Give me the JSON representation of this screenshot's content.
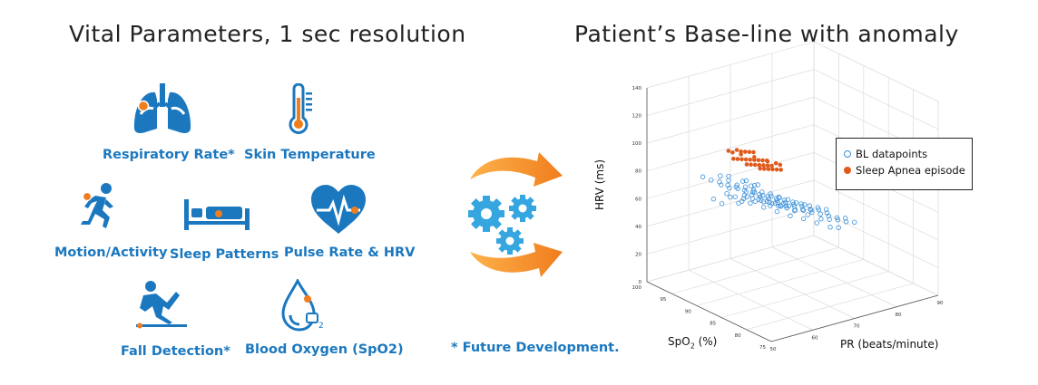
{
  "left_title": "Vital Parameters, 1 sec resolution",
  "right_title": "Patient’s Base-line with anomaly",
  "vitals": [
    {
      "label": "Respiratory Rate*",
      "icon": "lungs-icon"
    },
    {
      "label": "Skin Temperature",
      "icon": "thermometer-icon"
    },
    {
      "label": "Motion/Activity",
      "icon": "running-person-icon"
    },
    {
      "label": "Sleep Patterns",
      "icon": "bed-icon"
    },
    {
      "label": "Pulse Rate & HRV",
      "icon": "heart-pulse-icon"
    },
    {
      "label": "Fall Detection*",
      "icon": "falling-person-icon"
    },
    {
      "label": "Blood Oxygen (SpO2)",
      "icon": "blood-drop-icon"
    }
  ],
  "footnote": "* Future Development.",
  "colors": {
    "accent_blue": "#1b78bf",
    "accent_orange": "#f07d1e",
    "scatter_blue": "#3a8fd8",
    "anomaly_orange": "#e05a1c"
  },
  "chart_data": {
    "type": "scatter",
    "dimensions": 3,
    "axes": {
      "x": {
        "label": "PR (beats/minute)",
        "range": [
          50,
          90
        ],
        "ticks": [
          "50",
          "60",
          "70",
          "80",
          "90"
        ]
      },
      "y": {
        "label_prefix": "SpO",
        "label_sub": "2",
        "label_suffix": " (%)",
        "range": [
          75,
          100
        ],
        "ticks": [
          "75",
          "80",
          "85",
          "90",
          "95",
          "100"
        ]
      },
      "z": {
        "label": "HRV (ms)",
        "range": [
          0,
          140
        ],
        "ticks": [
          "0",
          "20",
          "40",
          "60",
          "80",
          "100",
          "120",
          "140"
        ]
      }
    },
    "grid": true,
    "legend_position": "top-right",
    "series": [
      {
        "name": "BL datapoints",
        "marker": "open-circle",
        "color": "#3a8fd8",
        "points": [
          [
            60,
            95,
            60
          ],
          [
            62,
            95,
            55
          ],
          [
            64,
            95,
            58
          ],
          [
            66,
            95,
            52
          ],
          [
            68,
            95,
            55
          ],
          [
            70,
            95,
            50
          ],
          [
            72,
            95,
            48
          ],
          [
            74,
            95,
            45
          ],
          [
            76,
            95,
            42
          ],
          [
            78,
            95,
            40
          ],
          [
            65,
            93,
            62
          ],
          [
            67,
            93,
            58
          ],
          [
            69,
            93,
            55
          ],
          [
            71,
            93,
            52
          ],
          [
            73,
            93,
            50
          ],
          [
            75,
            93,
            46
          ],
          [
            77,
            93,
            44
          ],
          [
            79,
            93,
            40
          ],
          [
            81,
            93,
            38
          ],
          [
            66,
            97,
            65
          ],
          [
            68,
            97,
            60
          ],
          [
            70,
            97,
            57
          ],
          [
            72,
            97,
            53
          ],
          [
            74,
            97,
            50
          ],
          [
            76,
            97,
            47
          ],
          [
            78,
            97,
            43
          ],
          [
            63,
            96,
            66
          ],
          [
            65,
            96,
            62
          ],
          [
            67,
            96,
            60
          ],
          [
            69,
            96,
            56
          ],
          [
            71,
            96,
            54
          ],
          [
            73,
            96,
            50
          ],
          [
            75,
            96,
            48
          ],
          [
            77,
            96,
            45
          ],
          [
            79,
            96,
            42
          ],
          [
            81,
            96,
            38
          ],
          [
            83,
            96,
            35
          ],
          [
            68,
            94,
            58
          ],
          [
            70,
            94,
            55
          ],
          [
            72,
            94,
            52
          ],
          [
            74,
            94,
            49
          ],
          [
            76,
            94,
            46
          ],
          [
            78,
            94,
            43
          ],
          [
            80,
            94,
            40
          ],
          [
            82,
            94,
            36
          ],
          [
            84,
            94,
            34
          ],
          [
            86,
            94,
            30
          ],
          [
            70,
            92,
            52
          ],
          [
            72,
            92,
            50
          ],
          [
            74,
            92,
            47
          ],
          [
            76,
            92,
            44
          ],
          [
            78,
            92,
            42
          ],
          [
            80,
            92,
            39
          ],
          [
            82,
            92,
            36
          ],
          [
            84,
            92,
            33
          ],
          [
            86,
            92,
            30
          ],
          [
            88,
            92,
            28
          ],
          [
            61,
            98,
            70
          ],
          [
            63,
            98,
            66
          ],
          [
            65,
            98,
            63
          ],
          [
            67,
            98,
            59
          ],
          [
            69,
            98,
            56
          ],
          [
            71,
            98,
            52
          ],
          [
            73,
            98,
            49
          ],
          [
            62,
            94,
            64
          ],
          [
            64,
            94,
            60
          ],
          [
            66,
            94,
            57
          ],
          [
            71,
            95,
            54
          ],
          [
            73,
            95,
            51
          ],
          [
            75,
            95,
            48
          ],
          [
            77,
            95,
            45
          ],
          [
            79,
            95,
            42
          ],
          [
            81,
            95,
            39
          ],
          [
            83,
            95,
            36
          ],
          [
            85,
            95,
            33
          ],
          [
            87,
            95,
            30
          ],
          [
            69,
            95,
            62
          ],
          [
            71,
            96,
            59
          ],
          [
            73,
            97,
            56
          ],
          [
            67,
            95,
            67
          ],
          [
            69,
            96,
            64
          ],
          [
            64,
            97,
            70
          ],
          [
            66,
            97,
            68
          ],
          [
            75,
            94,
            44
          ],
          [
            77,
            93,
            41
          ],
          [
            79,
            92,
            38
          ],
          [
            81,
            91,
            35
          ],
          [
            83,
            91,
            33
          ],
          [
            85,
            91,
            31
          ],
          [
            87,
            91,
            28
          ],
          [
            89,
            91,
            26
          ],
          [
            72,
            96,
            48
          ],
          [
            74,
            96,
            45
          ],
          [
            76,
            96,
            42
          ],
          [
            78,
            96,
            40
          ],
          [
            68,
            96,
            50
          ],
          [
            70,
            96,
            47
          ],
          [
            72,
            95,
            44
          ],
          [
            74,
            94,
            41
          ],
          [
            76,
            93,
            38
          ],
          [
            78,
            92,
            36
          ],
          [
            80,
            91,
            33
          ],
          [
            82,
            90,
            30
          ],
          [
            84,
            90,
            28
          ]
        ]
      },
      {
        "name": "Sleep Apnea episode",
        "marker": "filled-circle",
        "color": "#e05a1c",
        "points": [
          [
            60,
            92,
            100
          ],
          [
            61,
            92,
            98
          ],
          [
            62,
            92,
            99
          ],
          [
            63,
            92,
            97
          ],
          [
            64,
            92,
            96
          ],
          [
            65,
            92,
            95
          ],
          [
            66,
            92,
            94
          ],
          [
            60,
            91,
            96
          ],
          [
            61,
            91,
            95
          ],
          [
            62,
            91,
            94
          ],
          [
            63,
            91,
            93
          ],
          [
            64,
            91,
            92
          ],
          [
            65,
            91,
            91
          ],
          [
            66,
            91,
            90
          ],
          [
            67,
            91,
            89
          ],
          [
            62,
            90,
            92
          ],
          [
            63,
            90,
            91
          ],
          [
            64,
            90,
            90
          ],
          [
            65,
            90,
            89
          ],
          [
            66,
            90,
            88
          ],
          [
            67,
            90,
            87
          ],
          [
            68,
            90,
            86
          ],
          [
            64,
            89,
            89
          ],
          [
            65,
            89,
            88
          ],
          [
            66,
            89,
            87
          ],
          [
            67,
            89,
            86
          ],
          [
            68,
            89,
            85
          ],
          [
            69,
            89,
            84
          ],
          [
            63,
            92,
            95
          ],
          [
            65,
            91,
            93
          ],
          [
            67,
            90,
            90
          ],
          [
            68,
            91,
            88
          ],
          [
            69,
            90,
            87
          ],
          [
            70,
            90,
            85
          ]
        ]
      }
    ]
  }
}
